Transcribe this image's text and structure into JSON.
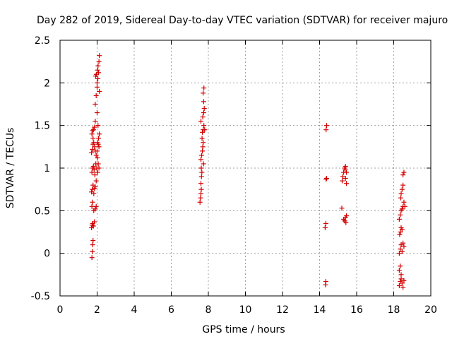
{
  "chart_data": {
    "type": "scatter",
    "title": "Day 282 of 2019, Sidereal Day-to-day VTEC variation (SDTVAR) for receiver majuro",
    "xlabel": "GPS time / hours",
    "ylabel": "SDTVAR / TECUs",
    "xlim": [
      0,
      20
    ],
    "ylim": [
      -0.5,
      2.5
    ],
    "xticks": [
      "0",
      "2",
      "4",
      "6",
      "8",
      "10",
      "12",
      "14",
      "16",
      "18",
      "20"
    ],
    "yticks": [
      "-0.5",
      "0",
      "0.5",
      "1",
      "1.5",
      "2",
      "2.5"
    ],
    "grid": true,
    "marker": "+",
    "color": "#d40000",
    "series": [
      {
        "name": "SDTVAR",
        "points": [
          [
            1.72,
            -0.05
          ],
          [
            1.74,
            0.02
          ],
          [
            1.76,
            0.1
          ],
          [
            1.78,
            0.15
          ],
          [
            1.7,
            0.3
          ],
          [
            1.73,
            0.33
          ],
          [
            1.76,
            0.35
          ],
          [
            1.8,
            0.32
          ],
          [
            1.85,
            0.37
          ],
          [
            1.72,
            0.55
          ],
          [
            1.75,
            0.6
          ],
          [
            1.82,
            0.5
          ],
          [
            1.9,
            0.52
          ],
          [
            1.95,
            0.55
          ],
          [
            1.7,
            0.72
          ],
          [
            1.74,
            0.75
          ],
          [
            1.78,
            0.8
          ],
          [
            1.82,
            0.7
          ],
          [
            1.86,
            0.76
          ],
          [
            1.9,
            0.78
          ],
          [
            1.95,
            0.85
          ],
          [
            1.72,
            0.95
          ],
          [
            1.76,
            1.0
          ],
          [
            1.8,
            1.02
          ],
          [
            1.84,
            0.98
          ],
          [
            1.88,
            0.92
          ],
          [
            1.93,
            1.05
          ],
          [
            1.98,
            1.0
          ],
          [
            1.7,
            1.18
          ],
          [
            1.74,
            1.22
          ],
          [
            1.78,
            1.28
          ],
          [
            1.82,
            1.3
          ],
          [
            1.86,
            1.25
          ],
          [
            1.9,
            1.2
          ],
          [
            1.95,
            1.15
          ],
          [
            2.0,
            1.2
          ],
          [
            1.72,
            1.4
          ],
          [
            1.76,
            1.44
          ],
          [
            1.8,
            1.45
          ],
          [
            1.85,
            1.48
          ],
          [
            1.9,
            1.55
          ],
          [
            1.78,
            1.35
          ],
          [
            2.02,
            1.3
          ],
          [
            2.06,
            1.28
          ],
          [
            2.1,
            1.25
          ],
          [
            2.02,
            1.12
          ],
          [
            2.06,
            1.05
          ],
          [
            2.1,
            1.0
          ],
          [
            2.03,
            0.95
          ],
          [
            2.08,
            1.35
          ],
          [
            2.12,
            1.4
          ],
          [
            2.0,
            1.65
          ],
          [
            1.9,
            1.75
          ],
          [
            1.95,
            1.85
          ],
          [
            2.0,
            1.95
          ],
          [
            1.92,
            2.08
          ],
          [
            1.96,
            2.1
          ],
          [
            2.02,
            2.15
          ],
          [
            2.05,
            2.2
          ],
          [
            2.1,
            2.25
          ],
          [
            2.12,
            2.32
          ],
          [
            2.08,
            2.12
          ],
          [
            2.04,
            2.05
          ],
          [
            2.0,
            2.0
          ],
          [
            2.12,
            1.9
          ],
          [
            2.05,
            1.5
          ],
          [
            7.55,
            0.6
          ],
          [
            7.58,
            0.65
          ],
          [
            7.6,
            0.7
          ],
          [
            7.62,
            0.75
          ],
          [
            7.6,
            0.82
          ],
          [
            7.63,
            0.9
          ],
          [
            7.65,
            0.95
          ],
          [
            7.6,
            1.1
          ],
          [
            7.64,
            1.15
          ],
          [
            7.68,
            1.2
          ],
          [
            7.7,
            1.25
          ],
          [
            7.72,
            1.3
          ],
          [
            7.66,
            1.35
          ],
          [
            7.68,
            1.42
          ],
          [
            7.72,
            1.45
          ],
          [
            7.76,
            1.5
          ],
          [
            7.6,
            1.55
          ],
          [
            7.7,
            1.6
          ],
          [
            7.75,
            1.65
          ],
          [
            7.78,
            1.7
          ],
          [
            7.75,
            1.78
          ],
          [
            7.72,
            1.88
          ],
          [
            7.76,
            1.94
          ],
          [
            7.8,
            1.45
          ],
          [
            7.74,
            1.05
          ],
          [
            7.62,
            1.0
          ],
          [
            14.32,
            -0.37
          ],
          [
            14.34,
            -0.33
          ],
          [
            14.3,
            0.3
          ],
          [
            14.34,
            0.35
          ],
          [
            14.35,
            0.87
          ],
          [
            14.38,
            0.88
          ],
          [
            14.35,
            1.45
          ],
          [
            14.38,
            1.5
          ],
          [
            15.2,
            0.53
          ],
          [
            15.22,
            0.85
          ],
          [
            15.25,
            0.9
          ],
          [
            15.3,
            0.95
          ],
          [
            15.35,
            1.0
          ],
          [
            15.4,
            1.02
          ],
          [
            15.38,
            0.98
          ],
          [
            15.45,
            0.95
          ],
          [
            15.4,
            0.88
          ],
          [
            15.45,
            0.82
          ],
          [
            15.3,
            0.4
          ],
          [
            15.35,
            0.38
          ],
          [
            15.4,
            0.42
          ],
          [
            15.45,
            0.44
          ],
          [
            15.42,
            0.36
          ],
          [
            18.3,
            -0.38
          ],
          [
            18.35,
            -0.33
          ],
          [
            18.4,
            -0.3
          ],
          [
            18.45,
            -0.35
          ],
          [
            18.5,
            -0.4
          ],
          [
            18.55,
            -0.32
          ],
          [
            18.3,
            -0.2
          ],
          [
            18.35,
            -0.15
          ],
          [
            18.4,
            -0.25
          ],
          [
            18.3,
            0.0
          ],
          [
            18.35,
            0.05
          ],
          [
            18.4,
            0.1
          ],
          [
            18.45,
            0.02
          ],
          [
            18.5,
            0.12
          ],
          [
            18.55,
            0.08
          ],
          [
            18.32,
            0.22
          ],
          [
            18.36,
            0.25
          ],
          [
            18.4,
            0.3
          ],
          [
            18.45,
            0.28
          ],
          [
            18.3,
            0.4
          ],
          [
            18.35,
            0.45
          ],
          [
            18.4,
            0.5
          ],
          [
            18.45,
            0.52
          ],
          [
            18.5,
            0.55
          ],
          [
            18.55,
            0.6
          ],
          [
            18.4,
            0.7
          ],
          [
            18.45,
            0.75
          ],
          [
            18.5,
            0.8
          ],
          [
            18.55,
            0.95
          ],
          [
            18.5,
            0.92
          ],
          [
            18.6,
            0.55
          ],
          [
            18.38,
            0.65
          ]
        ]
      }
    ]
  }
}
